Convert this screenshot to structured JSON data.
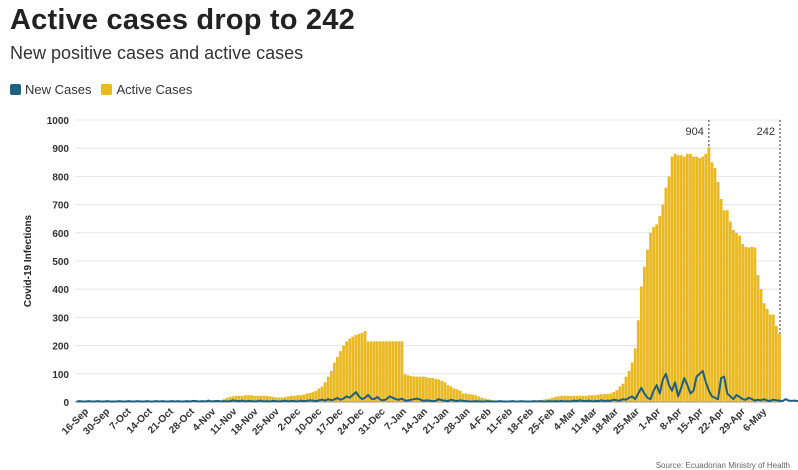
{
  "header": {
    "title": "Active cases drop to 242",
    "subtitle": "New positive cases and active cases"
  },
  "legend": [
    {
      "label": "New Cases",
      "color": "#1f5f7f"
    },
    {
      "label": "Active Cases",
      "color": "#eab922"
    }
  ],
  "colors": {
    "new": "#1f5f7f",
    "active": "#eab922",
    "grid": "#e6e6e6"
  },
  "chart_data": {
    "type": "bar",
    "title": "Active cases drop to 242",
    "subtitle": "New positive cases and active cases",
    "ylabel": "Covid-19 Infections",
    "ylim": [
      0,
      1000
    ],
    "yticks": [
      0,
      100,
      200,
      300,
      400,
      500,
      600,
      700,
      800,
      900,
      1000
    ],
    "xlabels": [
      "16-Sep",
      "30-Sep",
      "7-Oct",
      "14-Oct",
      "21-Oct",
      "28-Oct",
      "4-Nov",
      "11-Nov",
      "18-Nov",
      "25-Nov",
      "2-Dec",
      "10-Dec",
      "17-Dec",
      "24-Dec",
      "31-Dec",
      "7-Jan",
      "14-Jan",
      "21-Jan",
      "28-Jan",
      "4-Feb",
      "11-Feb",
      "18-Feb",
      "25-Feb",
      "4-Mar",
      "11-Mar",
      "18-Mar",
      "25-Mar",
      "1-Apr",
      "8-Apr",
      "15-Apr",
      "22-Apr",
      "29-Apr",
      "6-May"
    ],
    "annotations": [
      {
        "label": "904",
        "value": 904
      },
      {
        "label": "242",
        "value": 242
      }
    ],
    "series": [
      {
        "name": "Active Cases",
        "type": "bar",
        "values": [
          3,
          3,
          3,
          3,
          3,
          3,
          3,
          3,
          3,
          3,
          3,
          3,
          3,
          3,
          3,
          3,
          3,
          3,
          3,
          3,
          3,
          3,
          3,
          3,
          3,
          3,
          3,
          3,
          3,
          3,
          3,
          3,
          3,
          3,
          3,
          3,
          3,
          3,
          3,
          3,
          3,
          4,
          4,
          5,
          5,
          5,
          5,
          6,
          10,
          15,
          18,
          20,
          22,
          22,
          22,
          24,
          24,
          24,
          22,
          22,
          22,
          22,
          22,
          20,
          18,
          16,
          16,
          16,
          18,
          20,
          22,
          22,
          24,
          24,
          26,
          30,
          32,
          35,
          40,
          48,
          55,
          70,
          90,
          110,
          140,
          160,
          180,
          200,
          215,
          225,
          232,
          238,
          242,
          245,
          252,
          215,
          215,
          215,
          215,
          215,
          215,
          215,
          215,
          215,
          215,
          215,
          215,
          98,
          95,
          92,
          90,
          90,
          90,
          90,
          88,
          85,
          85,
          82,
          80,
          75,
          70,
          60,
          55,
          48,
          45,
          40,
          30,
          30,
          28,
          26,
          24,
          20,
          15,
          12,
          10,
          8,
          6,
          5,
          5,
          5,
          5,
          5,
          5,
          5,
          5,
          5,
          5,
          5,
          5,
          5,
          6,
          6,
          8,
          10,
          12,
          15,
          18,
          20,
          22,
          22,
          22,
          22,
          22,
          22,
          22,
          22,
          22,
          24,
          24,
          24,
          26,
          28,
          28,
          28,
          30,
          35,
          42,
          55,
          65,
          90,
          110,
          140,
          190,
          290,
          410,
          480,
          540,
          600,
          620,
          630,
          660,
          700,
          760,
          800,
          870,
          880,
          875,
          875,
          870,
          880,
          880,
          870,
          870,
          865,
          870,
          880,
          904,
          850,
          830,
          780,
          720,
          680,
          680,
          640,
          610,
          600,
          590,
          560,
          550,
          548,
          550,
          548,
          450,
          400,
          350,
          330,
          310,
          310,
          270,
          242
        ]
      },
      {
        "name": "New Cases",
        "type": "line",
        "values": [
          2,
          3,
          2,
          2,
          3,
          2,
          2,
          3,
          2,
          2,
          3,
          2,
          2,
          2,
          3,
          2,
          2,
          3,
          2,
          2,
          3,
          2,
          2,
          3,
          2,
          2,
          3,
          2,
          3,
          2,
          2,
          3,
          2,
          3,
          2,
          2,
          3,
          2,
          4,
          3,
          2,
          3,
          2,
          5,
          2,
          3,
          4,
          2,
          3,
          2,
          3,
          6,
          4,
          3,
          5,
          2,
          4,
          3,
          2,
          3,
          5,
          2,
          3,
          2,
          4,
          3,
          2,
          3,
          5,
          2,
          4,
          3,
          2,
          5,
          3,
          4,
          6,
          5,
          3,
          6,
          8,
          5,
          10,
          6,
          9,
          14,
          8,
          12,
          20,
          15,
          25,
          35,
          20,
          10,
          15,
          25,
          12,
          10,
          18,
          8,
          6,
          10,
          20,
          15,
          10,
          8,
          12,
          5,
          5,
          8,
          10,
          12,
          8,
          4,
          6,
          5,
          3,
          4,
          10,
          6,
          5,
          3,
          8,
          5,
          3,
          6,
          4,
          3,
          2,
          2,
          3,
          2,
          2,
          2,
          3,
          2,
          2,
          2,
          3,
          2,
          2,
          2,
          3,
          2,
          2,
          3,
          2,
          2,
          2,
          3,
          2,
          3,
          2,
          2,
          3,
          2,
          3,
          2,
          4,
          2,
          3,
          2,
          5,
          3,
          6,
          4,
          3,
          5,
          2,
          4,
          3,
          6,
          3,
          5,
          4,
          8,
          6,
          5,
          10,
          8,
          15,
          20,
          10,
          30,
          50,
          30,
          15,
          10,
          40,
          60,
          30,
          80,
          100,
          60,
          40,
          70,
          20,
          50,
          85,
          60,
          30,
          40,
          90,
          100,
          110,
          70,
          40,
          20,
          15,
          10,
          85,
          90,
          30,
          20,
          10,
          25,
          18,
          10,
          8,
          15,
          10,
          5,
          8,
          6,
          10,
          5,
          4,
          8,
          6,
          5,
          3,
          10,
          5,
          4,
          5,
          3,
          6,
          4,
          8
        ]
      }
    ]
  },
  "source_text": "Source: Ecuadorian Ministry of Health"
}
